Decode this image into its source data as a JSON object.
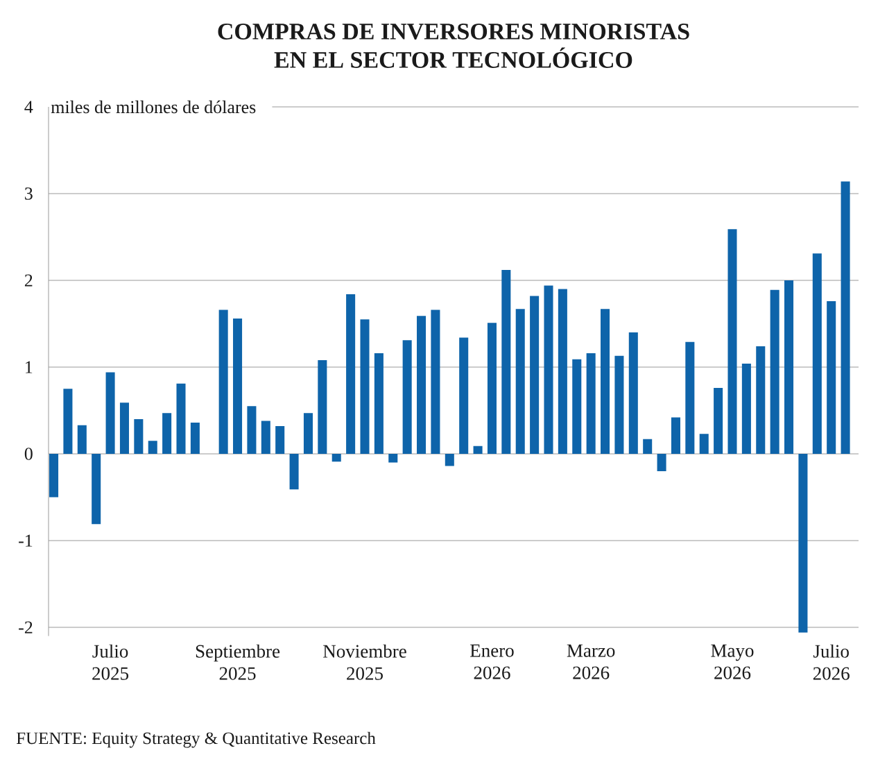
{
  "chart_data": {
    "type": "bar",
    "title": "COMPRAS DE INVERSORES MINORISTAS EN EL SECTOR TECNOLÓGICO",
    "ylabel": "miles de millones de dólares",
    "annotations": [
      "FUENTE: Equity Strategy & Quantitative Research"
    ],
    "categories": [
      null,
      null,
      null,
      null,
      "Julio 2025",
      null,
      null,
      null,
      null,
      null,
      null,
      null,
      null,
      "Septiembre 2025",
      null,
      null,
      null,
      null,
      null,
      null,
      null,
      null,
      "Noviembre 2025",
      null,
      null,
      null,
      null,
      null,
      null,
      null,
      null,
      "Enero 2026",
      null,
      null,
      null,
      null,
      null,
      null,
      "Marzo 2026",
      null,
      null,
      null,
      null,
      null,
      null,
      null,
      null,
      null,
      "Mayo 2026",
      null,
      null,
      null,
      null,
      null,
      null,
      "Julio 2026",
      null
    ],
    "values": [
      -0.5,
      0.75,
      0.33,
      -0.81,
      0.94,
      0.59,
      0.4,
      0.15,
      0.47,
      0.81,
      0.36,
      null,
      1.66,
      1.56,
      0.55,
      0.38,
      0.32,
      -0.41,
      0.47,
      1.08,
      -0.09,
      1.84,
      1.55,
      1.16,
      -0.1,
      1.31,
      1.59,
      1.66,
      -0.14,
      1.34,
      0.09,
      1.51,
      2.12,
      1.67,
      1.82,
      1.94,
      1.9,
      1.09,
      1.16,
      1.67,
      1.13,
      1.4,
      0.17,
      -0.2,
      0.42,
      1.29,
      0.23,
      0.76,
      2.59,
      1.04,
      1.24,
      1.89,
      2.0,
      -2.06,
      2.31,
      1.76,
      3.14
    ],
    "color": "#0e64aa",
    "ylim": [
      -2.1,
      4
    ],
    "yticks": [
      -2,
      -1,
      0,
      1,
      2,
      3,
      4
    ],
    "grid": "y"
  }
}
